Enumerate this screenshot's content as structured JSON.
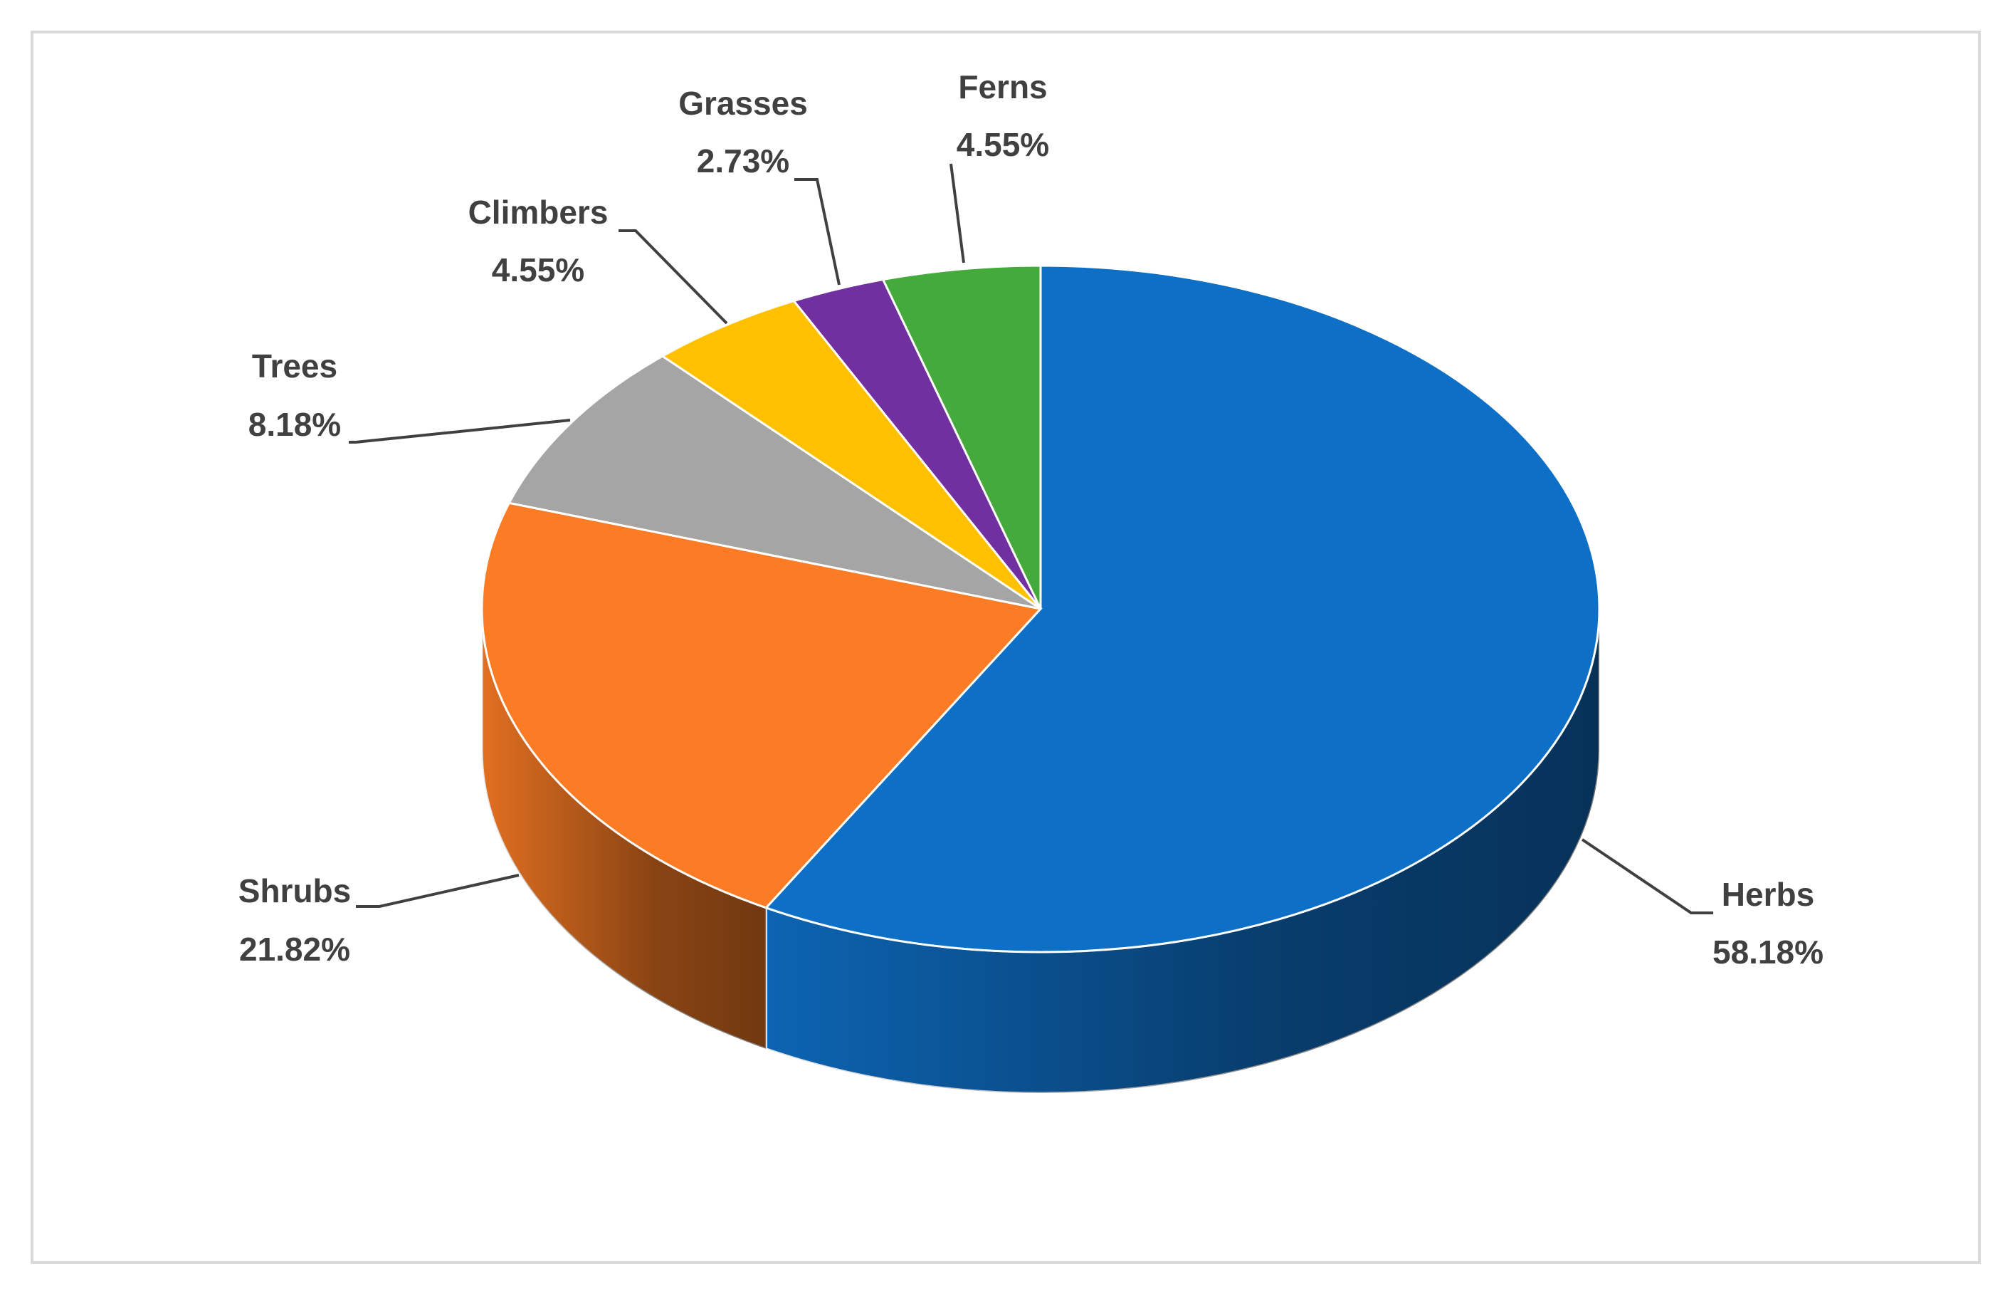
{
  "chart_data": {
    "type": "pie",
    "categories": [
      "Herbs",
      "Shrubs",
      "Trees",
      "Climbers",
      "Grasses",
      "Ferns"
    ],
    "values": [
      58.18,
      21.82,
      8.18,
      4.55,
      2.73,
      4.55
    ],
    "value_labels": [
      "58.18%",
      "21.82%",
      "8.18%",
      "4.55%",
      "2.73%",
      "4.55%"
    ],
    "colors": [
      "#0e6fc6",
      "#fb7c24",
      "#a5a5a5",
      "#ffc000",
      "#7030a0",
      "#44aa3b"
    ]
  }
}
